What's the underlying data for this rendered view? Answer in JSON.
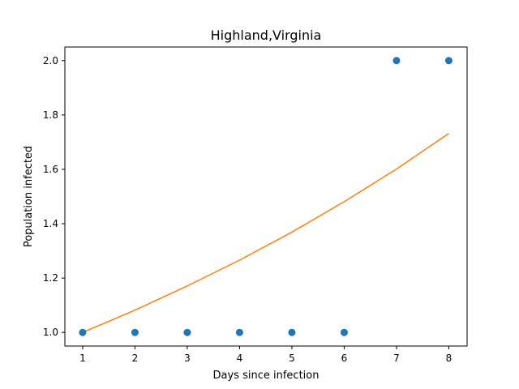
{
  "chart_data": {
    "type": "scatter",
    "title": "Highland,Virginia",
    "xlabel": "Days since infection",
    "ylabel": "Population infected",
    "xlim": [
      0.66,
      8.35
    ],
    "ylim": [
      0.95,
      2.05
    ],
    "xticks": [
      1,
      2,
      3,
      4,
      5,
      6,
      7,
      8
    ],
    "yticks": [
      1.0,
      1.2,
      1.4,
      1.6,
      1.8,
      2.0
    ],
    "ytick_labels": [
      "1.0",
      "1.2",
      "1.4",
      "1.6",
      "1.8",
      "2.0"
    ],
    "grid": false,
    "series": [
      {
        "kind": "scatter",
        "color": "#1f77b4",
        "x": [
          1,
          2,
          3,
          4,
          5,
          6,
          7,
          8
        ],
        "y": [
          1,
          1,
          1,
          1,
          1,
          1,
          2,
          2
        ]
      },
      {
        "kind": "line",
        "color": "#ff7f0e",
        "x": [
          1,
          2,
          3,
          4,
          5,
          6,
          7,
          8
        ],
        "y": [
          1.0,
          1.082,
          1.171,
          1.266,
          1.369,
          1.481,
          1.601,
          1.732
        ]
      }
    ]
  }
}
